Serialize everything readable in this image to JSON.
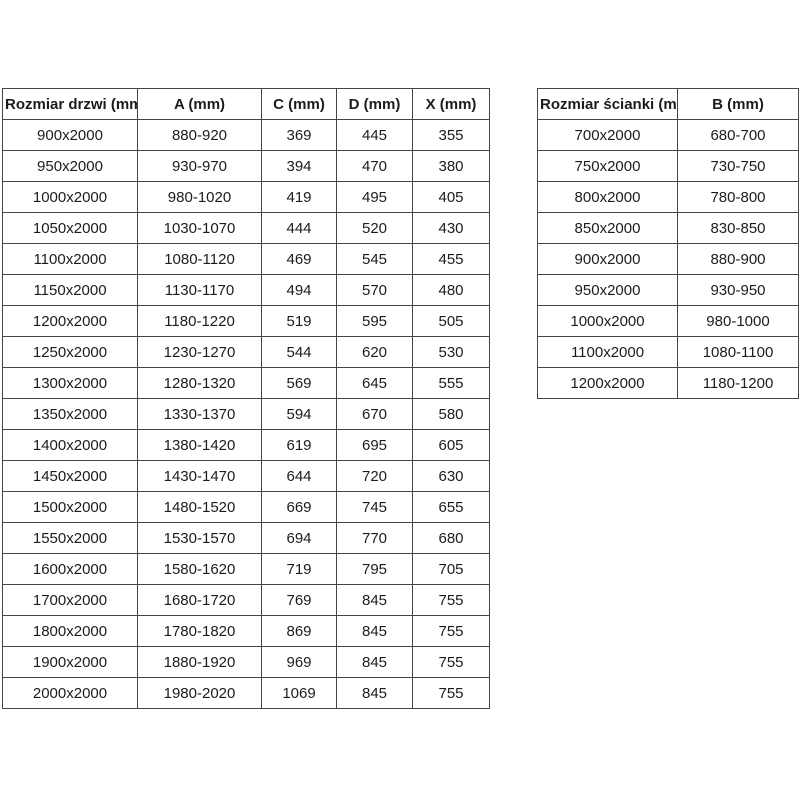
{
  "page": {
    "background_color": "#ffffff",
    "text_color": "#1c1c1c",
    "border_color": "#454545"
  },
  "door_table": {
    "headers": [
      "Rozmiar drzwi (mm)",
      "A (mm)",
      "C (mm)",
      "D (mm)",
      "X (mm)"
    ],
    "rows": [
      [
        "900x2000",
        "880-920",
        "369",
        "445",
        "355"
      ],
      [
        "950x2000",
        "930-970",
        "394",
        "470",
        "380"
      ],
      [
        "1000x2000",
        "980-1020",
        "419",
        "495",
        "405"
      ],
      [
        "1050x2000",
        "1030-1070",
        "444",
        "520",
        "430"
      ],
      [
        "1100x2000",
        "1080-1120",
        "469",
        "545",
        "455"
      ],
      [
        "1150x2000",
        "1130-1170",
        "494",
        "570",
        "480"
      ],
      [
        "1200x2000",
        "1180-1220",
        "519",
        "595",
        "505"
      ],
      [
        "1250x2000",
        "1230-1270",
        "544",
        "620",
        "530"
      ],
      [
        "1300x2000",
        "1280-1320",
        "569",
        "645",
        "555"
      ],
      [
        "1350x2000",
        "1330-1370",
        "594",
        "670",
        "580"
      ],
      [
        "1400x2000",
        "1380-1420",
        "619",
        "695",
        "605"
      ],
      [
        "1450x2000",
        "1430-1470",
        "644",
        "720",
        "630"
      ],
      [
        "1500x2000",
        "1480-1520",
        "669",
        "745",
        "655"
      ],
      [
        "1550x2000",
        "1530-1570",
        "694",
        "770",
        "680"
      ],
      [
        "1600x2000",
        "1580-1620",
        "719",
        "795",
        "705"
      ],
      [
        "1700x2000",
        "1680-1720",
        "769",
        "845",
        "755"
      ],
      [
        "1800x2000",
        "1780-1820",
        "869",
        "845",
        "755"
      ],
      [
        "1900x2000",
        "1880-1920",
        "969",
        "845",
        "755"
      ],
      [
        "2000x2000",
        "1980-2020",
        "1069",
        "845",
        "755"
      ]
    ]
  },
  "wall_table": {
    "headers": [
      "Rozmiar ścianki (mm)",
      "B (mm)"
    ],
    "rows": [
      [
        "700x2000",
        "680-700"
      ],
      [
        "750x2000",
        "730-750"
      ],
      [
        "800x2000",
        "780-800"
      ],
      [
        "850x2000",
        "830-850"
      ],
      [
        "900x2000",
        "880-900"
      ],
      [
        "950x2000",
        "930-950"
      ],
      [
        "1000x2000",
        "980-1000"
      ],
      [
        "1100x2000",
        "1080-1100"
      ],
      [
        "1200x2000",
        "1180-1200"
      ]
    ]
  }
}
